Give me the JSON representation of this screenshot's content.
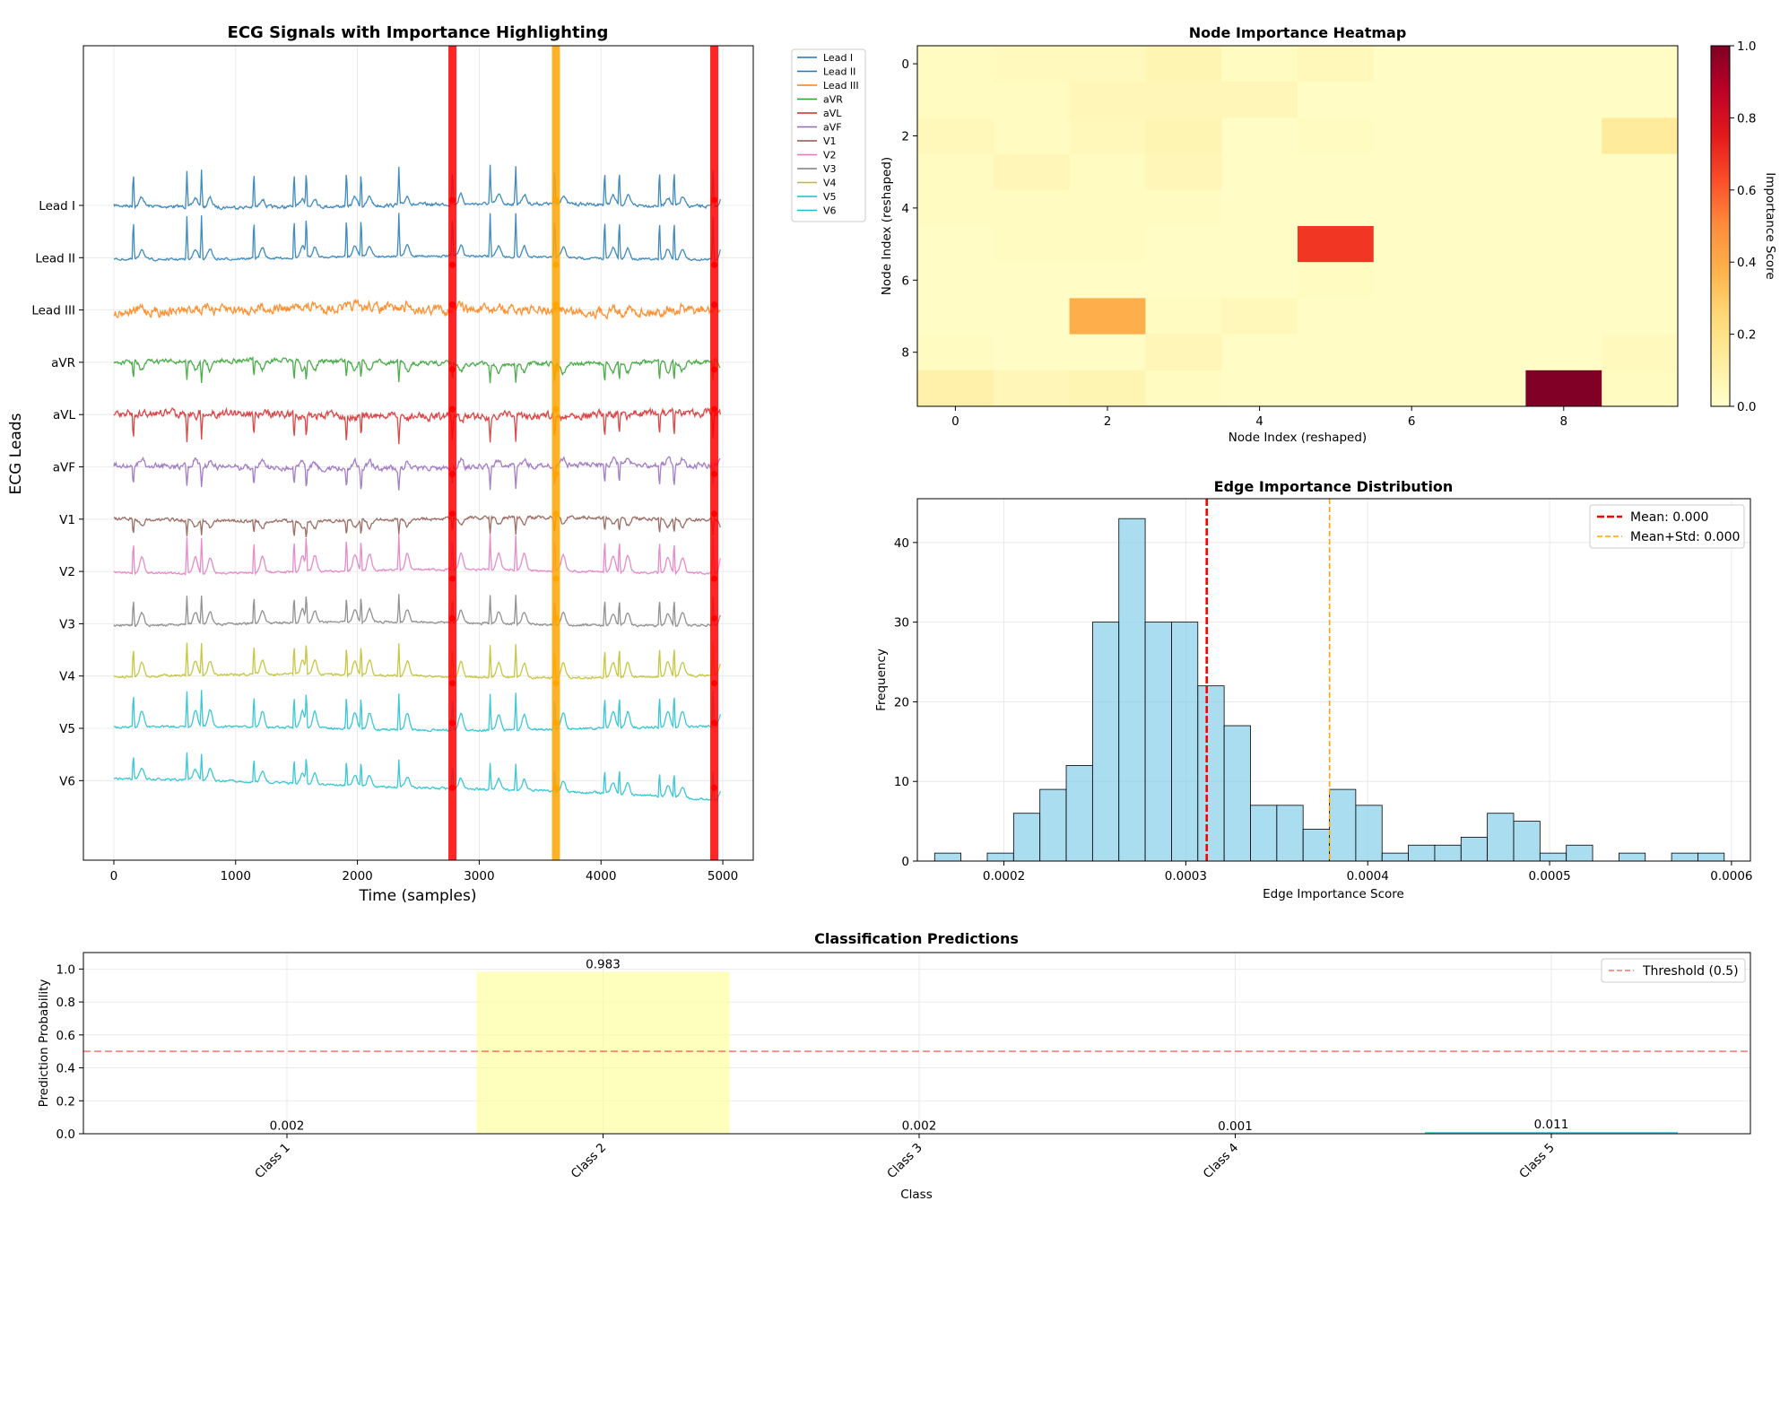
{
  "chart_data": [
    {
      "type": "line",
      "title": "ECG Signals with Importance Highlighting",
      "xlabel": "Time (samples)",
      "ylabel": "ECG Leads",
      "xlim": [
        -250,
        5250
      ],
      "xticks": [
        0,
        1000,
        2000,
        3000,
        4000,
        5000
      ],
      "leads": [
        "Lead I",
        "Lead II",
        "Lead III",
        "aVR",
        "aVL",
        "aVF",
        "V1",
        "V2",
        "V3",
        "V4",
        "V5",
        "V6"
      ],
      "lead_colors": [
        "#1f77b4",
        "#1f77b4",
        "#ff7f0e",
        "#2ca02c",
        "#d62728",
        "#9467bd",
        "#8c564b",
        "#e377c2",
        "#7f7f7f",
        "#bcbd22",
        "#17becf",
        "#17becf"
      ],
      "beat_positions": [
        160,
        600,
        720,
        1150,
        1480,
        1580,
        1910,
        2030,
        2340,
        2780,
        3090,
        3300,
        3620,
        4030,
        4150,
        4480,
        4600,
        4920
      ],
      "highlight_regions": [
        {
          "x": 2780,
          "color": "#ff0000",
          "label": "high"
        },
        {
          "x": 3630,
          "color": "#ffa500",
          "label": "medium"
        },
        {
          "x": 4930,
          "color": "#ff0000",
          "label": "high"
        }
      ],
      "legend": [
        "Lead I",
        "Lead II",
        "Lead III",
        "aVR",
        "aVL",
        "aVF",
        "V1",
        "V2",
        "V3",
        "V4",
        "V5",
        "V6"
      ]
    },
    {
      "type": "heatmap",
      "title": "Node Importance Heatmap",
      "xlabel": "Node Index (reshaped)",
      "ylabel": "Node Index (reshaped)",
      "colorbar_label": "Importance Score",
      "colorbar_ticks": [
        "0.0",
        "0.2",
        "0.4",
        "0.6",
        "0.8",
        "1.0"
      ],
      "xticks": [
        "0",
        "2",
        "4",
        "6",
        "8"
      ],
      "yticks": [
        "0",
        "2",
        "4",
        "6",
        "8"
      ],
      "values": [
        [
          0.03,
          0.04,
          0.04,
          0.07,
          0.03,
          0.05,
          0.02,
          0.02,
          0.02,
          0.02
        ],
        [
          0.03,
          0.03,
          0.06,
          0.06,
          0.06,
          0.02,
          0.02,
          0.02,
          0.02,
          0.02
        ],
        [
          0.05,
          0.03,
          0.05,
          0.07,
          0.02,
          0.03,
          0.02,
          0.02,
          0.02,
          0.14
        ],
        [
          0.03,
          0.06,
          0.03,
          0.06,
          0.02,
          0.02,
          0.02,
          0.02,
          0.02,
          0.02
        ],
        [
          0.03,
          0.03,
          0.03,
          0.03,
          0.02,
          0.02,
          0.02,
          0.02,
          0.02,
          0.02
        ],
        [
          0.02,
          0.03,
          0.03,
          0.02,
          0.02,
          0.68,
          0.02,
          0.02,
          0.02,
          0.02
        ],
        [
          0.02,
          0.02,
          0.02,
          0.02,
          0.02,
          0.03,
          0.02,
          0.02,
          0.02,
          0.02
        ],
        [
          0.02,
          0.02,
          0.39,
          0.03,
          0.05,
          0.02,
          0.02,
          0.02,
          0.02,
          0.02
        ],
        [
          0.03,
          0.02,
          0.02,
          0.06,
          0.02,
          0.02,
          0.02,
          0.02,
          0.02,
          0.04
        ],
        [
          0.1,
          0.06,
          0.07,
          0.03,
          0.02,
          0.02,
          0.02,
          0.02,
          1.0,
          0.03
        ]
      ]
    },
    {
      "type": "histogram",
      "title": "Edge Importance Distribution",
      "xlabel": "Edge Importance Score",
      "ylabel": "Frequency",
      "xlim": [
        0.0001524,
        0.0006104
      ],
      "ylim": [
        0,
        45.5
      ],
      "xticks": [
        "0.0002",
        "0.0003",
        "0.0004",
        "0.0005",
        "0.0006"
      ],
      "yticks": [
        "0",
        "10",
        "20",
        "30",
        "40"
      ],
      "bin_start": 0.0001619,
      "bin_width": 1.447e-05,
      "counts": [
        1,
        0,
        1,
        6,
        9,
        12,
        30,
        43,
        30,
        30,
        22,
        17,
        7,
        7,
        4,
        9,
        7,
        1,
        2,
        2,
        3,
        6,
        5,
        1,
        2,
        0,
        1,
        0,
        1,
        1
      ],
      "mean_line": {
        "x": 0.0003115,
        "label": "Mean: 0.000"
      },
      "std_line": {
        "x": 0.000379,
        "label": "Mean+Std: 0.000"
      }
    },
    {
      "type": "bar",
      "title": "Classification Predictions",
      "xlabel": "Class",
      "ylabel": "Prediction Probability",
      "categories": [
        "Class 1",
        "Class 2",
        "Class 3",
        "Class 4",
        "Class 5"
      ],
      "values": [
        0.002,
        0.983,
        0.002,
        0.001,
        0.011
      ],
      "value_labels": [
        "0.002",
        "0.983",
        "0.002",
        "0.001",
        "0.011"
      ],
      "bar_colors": [
        "#2ca02c",
        "#ffff99",
        "#9467bd",
        "#8c564b",
        "#17becf"
      ],
      "ylim": [
        0,
        1.1
      ],
      "yticks": [
        "0.0",
        "0.2",
        "0.4",
        "0.6",
        "0.8",
        "1.0"
      ],
      "threshold": {
        "y": 0.5,
        "label": "Threshold (0.5)"
      }
    }
  ]
}
